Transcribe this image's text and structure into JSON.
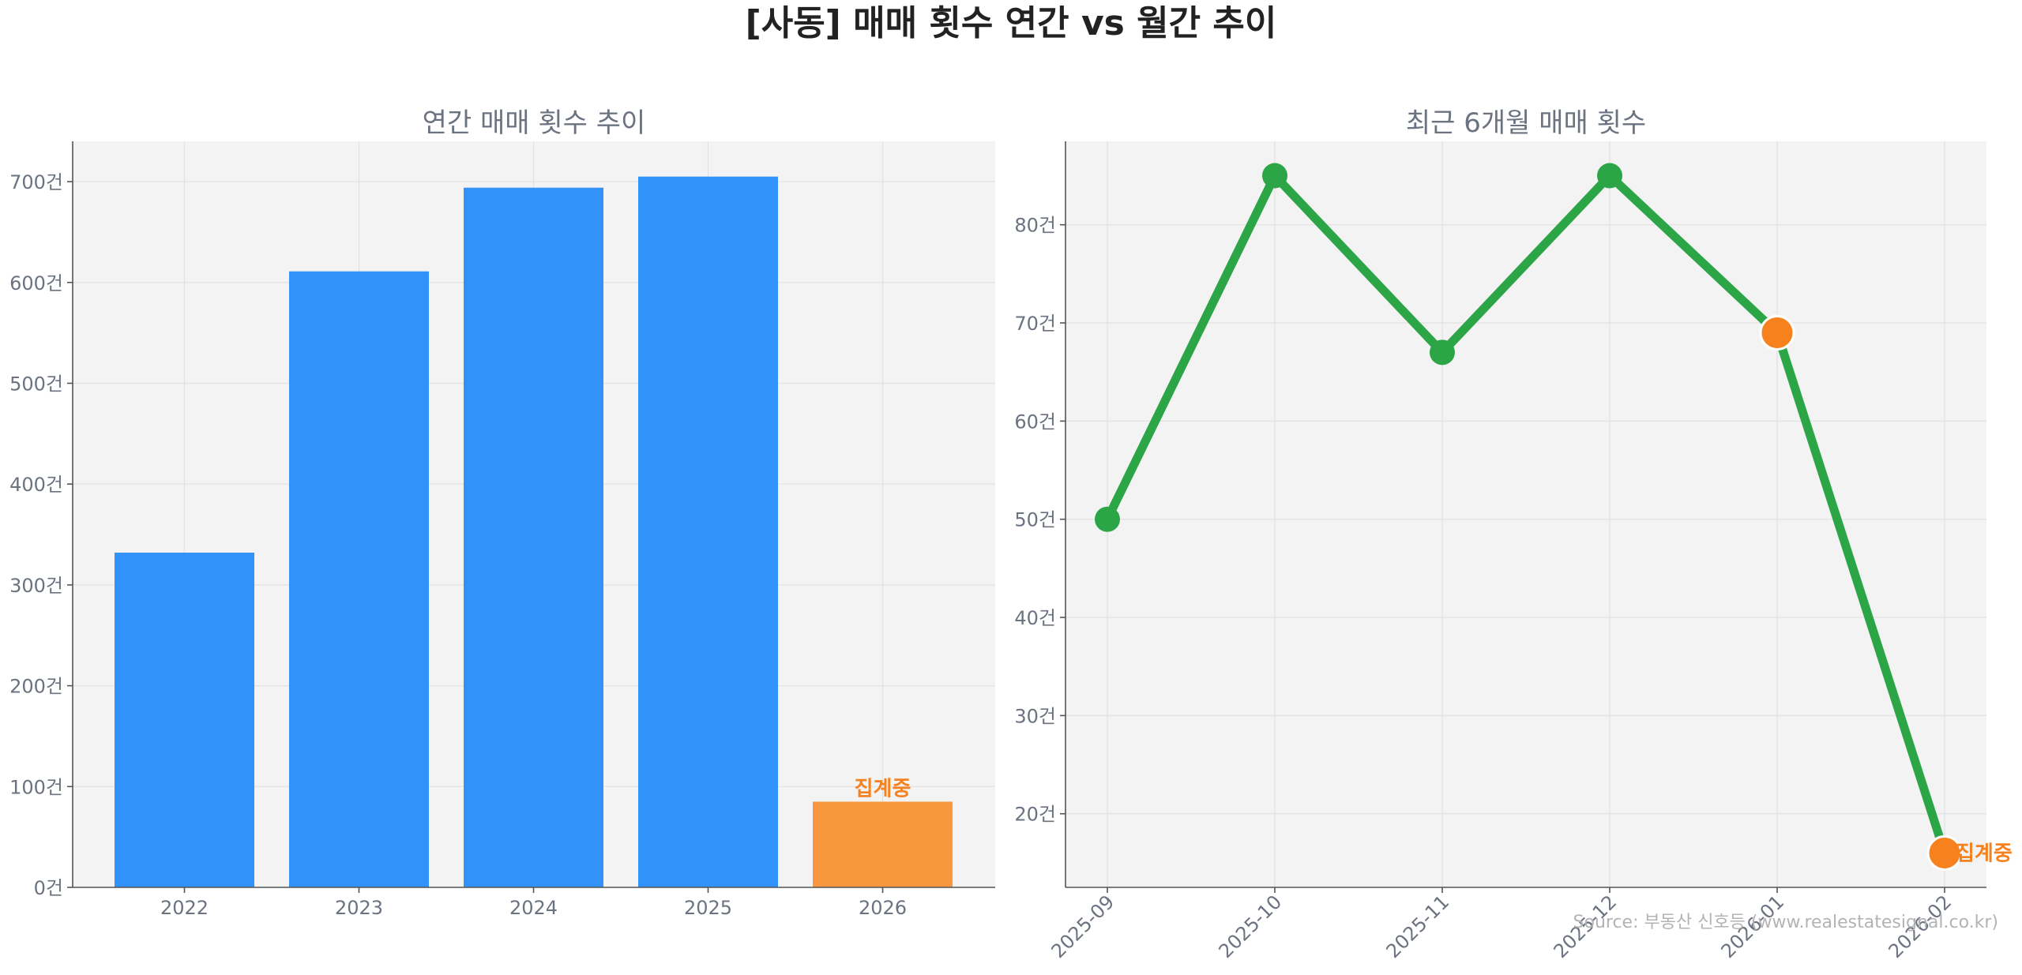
{
  "title": "[사동] 매매 횟수 연간 vs 월간 추이",
  "source": "Source: 부동산 신호등 (www.realestatesignal.co.kr)",
  "colors": {
    "bar": "#3192f9",
    "bar_partial": "#f8973e",
    "line": "#2ba546",
    "partial_marker": "#f7821d",
    "badge": "#f58220"
  },
  "chart_data": [
    {
      "type": "bar",
      "title": "연간 매매 횟수 추이",
      "categories": [
        "2022",
        "2023",
        "2024",
        "2025",
        "2026"
      ],
      "values": [
        332,
        611,
        694,
        705,
        85
      ],
      "partial": [
        false,
        false,
        false,
        false,
        true
      ],
      "annotation": "집계중",
      "ylim": [
        0,
        740
      ],
      "yticks": [
        0,
        100,
        200,
        300,
        400,
        500,
        600,
        700
      ],
      "y_unit": "건",
      "grid": true
    },
    {
      "type": "line",
      "title": "최근 6개월 매매 횟수",
      "categories": [
        "2025-09",
        "2025-10",
        "2025-11",
        "2025-12",
        "2026-01",
        "2026-02"
      ],
      "values": [
        50,
        85,
        67,
        85,
        69,
        16
      ],
      "partial": [
        false,
        false,
        false,
        false,
        true,
        true
      ],
      "annotation": "집계중",
      "ylim": [
        12.5,
        88.5
      ],
      "yticks": [
        20,
        30,
        40,
        50,
        60,
        70,
        80
      ],
      "y_unit": "건",
      "grid": true
    }
  ]
}
